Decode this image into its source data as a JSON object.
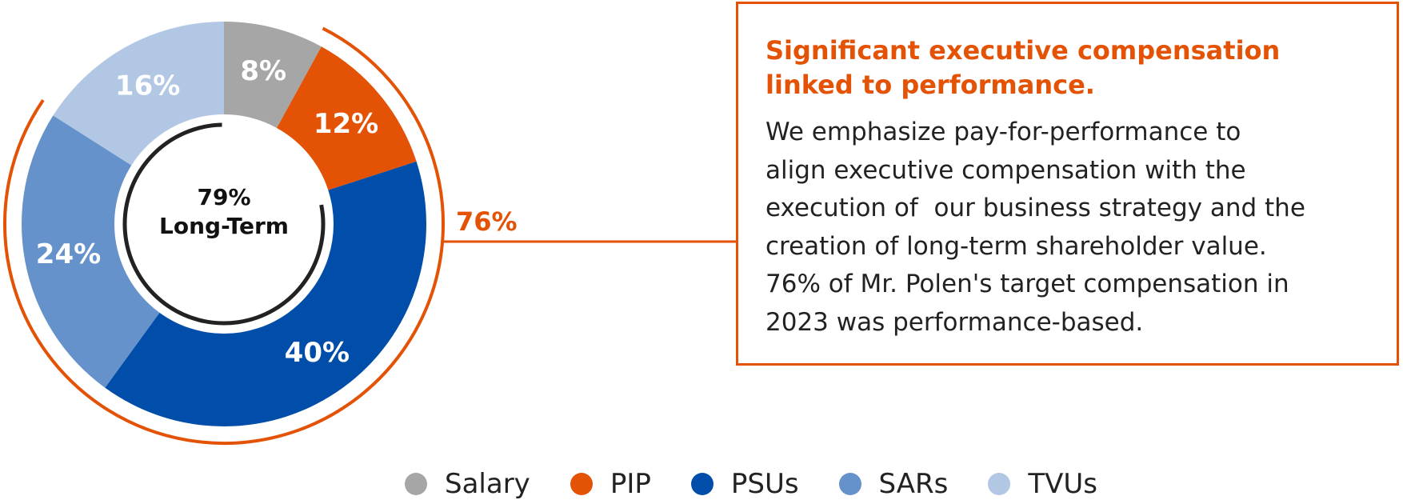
{
  "chart_data": {
    "type": "pie",
    "variant": "donut",
    "categories": [
      "Salary",
      "PIP",
      "PSUs",
      "SARs",
      "TVUs"
    ],
    "values": [
      8,
      12,
      40,
      24,
      16
    ],
    "labels": [
      "8%",
      "12%",
      "40%",
      "24%",
      "16%"
    ],
    "colors": [
      "#a6a6a6",
      "#e35205",
      "#004eaa",
      "#6592ca",
      "#b1c7e4"
    ],
    "center_label": {
      "value": "79%",
      "text": "Long-Term"
    },
    "performance_arc": {
      "label": "76%",
      "categories": [
        "PIP",
        "PSUs",
        "SARs"
      ],
      "color": "#e35205"
    },
    "long_term_categories": [
      "PSUs",
      "SARs",
      "TVUs"
    ],
    "legend": {
      "position": "bottom"
    }
  },
  "callout": {
    "title_lines": [
      "Significant executive compensation",
      "linked to performance."
    ],
    "body_lines": [
      "We emphasize pay-for-performance to",
      "align executive compensation with the",
      "execution of  our business strategy and the",
      "creation of long-term shareholder value.",
      "76% of Mr. Polen's target compensation in",
      "2023 was performance-based."
    ]
  },
  "legend": {
    "items": [
      {
        "label": "Salary",
        "color": "#a6a6a6"
      },
      {
        "label": "PIP",
        "color": "#e35205"
      },
      {
        "label": "PSUs",
        "color": "#004eaa"
      },
      {
        "label": "SARs",
        "color": "#6592ca"
      },
      {
        "label": "TVUs",
        "color": "#b1c7e4"
      }
    ]
  }
}
